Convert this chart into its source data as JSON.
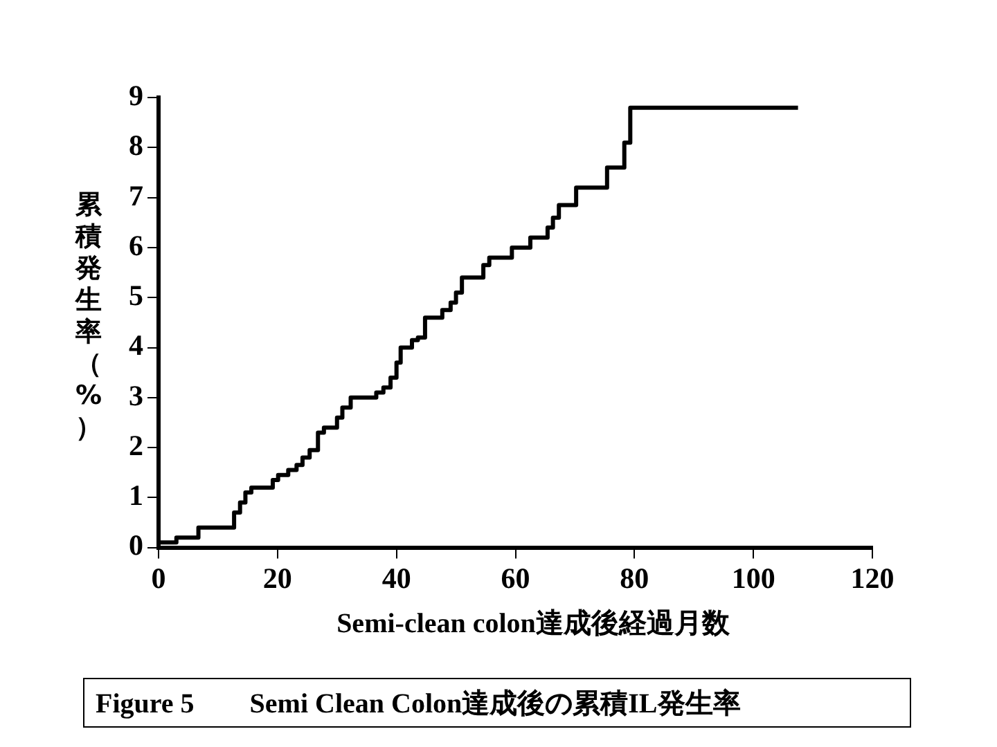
{
  "chart_data": {
    "type": "step",
    "title": "Figure 5　　Semi Clean Colon達成後の累積IL発生率",
    "xlabel": "Semi-clean colon達成後経過月数",
    "ylabel": "累積発生率（%）",
    "x": [
      0,
      3,
      6.7,
      12.7,
      13.7,
      14.6,
      15.6,
      19.2,
      20.1,
      21.8,
      23.2,
      24.2,
      25.4,
      26.8,
      27.8,
      30,
      30.9,
      32.3,
      36.6,
      37.8,
      39,
      40,
      40.7,
      42.6,
      43.6,
      44.8,
      47.7,
      49.1,
      50,
      51,
      54.6,
      55.6,
      59.4,
      62.5,
      65.4,
      66.3,
      67.3,
      70.2,
      75.4,
      78.3,
      79.3,
      84.6,
      107.5
    ],
    "series": [
      {
        "color": "#000000",
        "values": [
          0,
          0.1,
          0.2,
          0.4,
          0.7,
          0.9,
          1.1,
          1.2,
          1.35,
          1.45,
          1.55,
          1.65,
          1.8,
          1.95,
          2.3,
          2.4,
          2.6,
          2.8,
          3.0,
          3.1,
          3.2,
          3.4,
          3.7,
          4.0,
          4.15,
          4.2,
          4.6,
          4.75,
          4.9,
          5.1,
          5.4,
          5.65,
          5.8,
          6.0,
          6.2,
          6.4,
          6.6,
          6.85,
          7.2,
          7.6,
          8.1,
          8.8,
          8.8
        ]
      }
    ],
    "xlim": [
      0,
      120
    ],
    "xticks": [
      0,
      20,
      40,
      60,
      80,
      100,
      120
    ],
    "ylim": [
      0,
      9
    ],
    "yticks": [
      0,
      1,
      2,
      3,
      4,
      5,
      6,
      7,
      8,
      9
    ],
    "grid": false,
    "legend": false,
    "marker": "none",
    "line_style": "solid"
  }
}
